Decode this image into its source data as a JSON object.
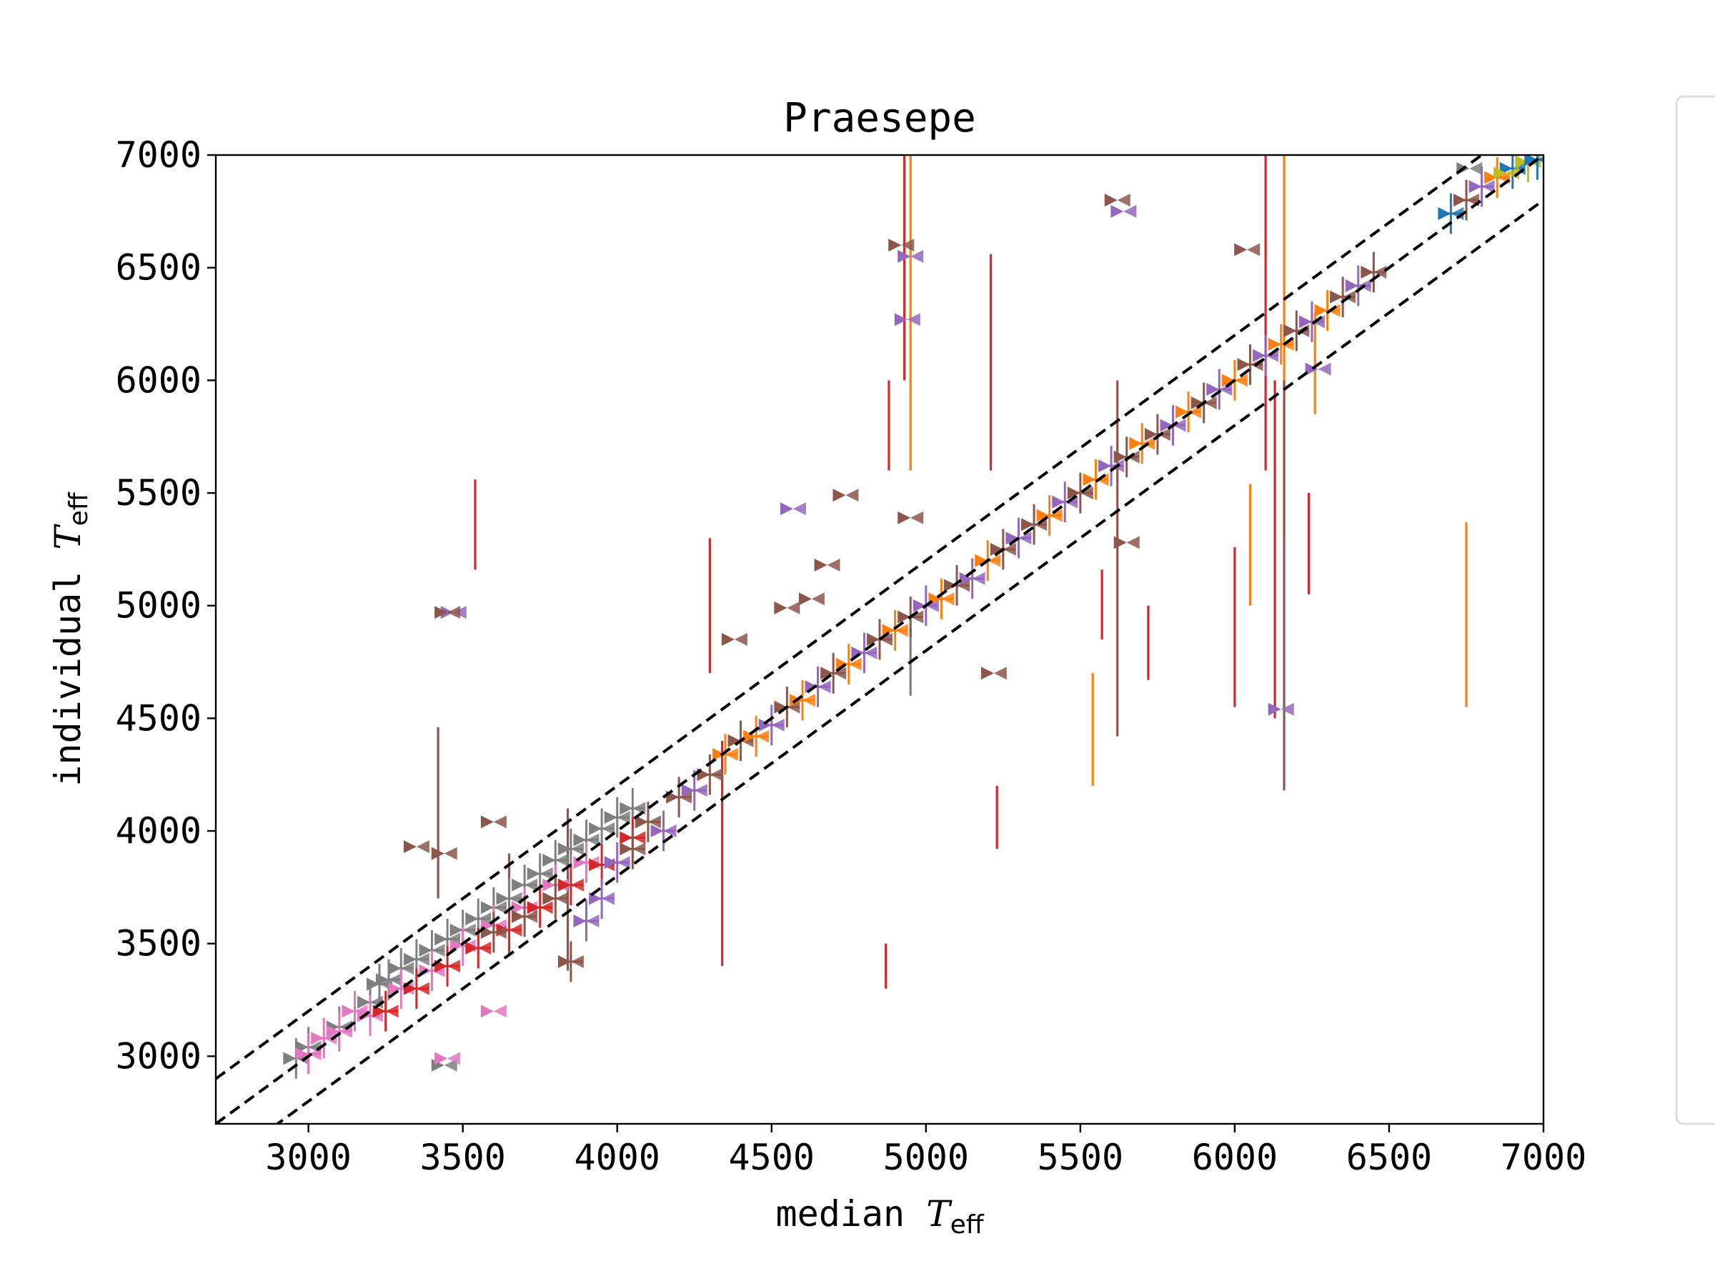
{
  "chart_data": {
    "type": "scatter",
    "title": "Praesepe",
    "xlabel": {
      "text": "median ",
      "symbol": "T",
      "sub": "eff"
    },
    "ylabel": {
      "text": "individual ",
      "symbol": "T",
      "sub": "eff"
    },
    "xlim": [
      2700,
      7000
    ],
    "ylim": [
      2700,
      7000
    ],
    "xticks": [
      3000,
      3500,
      4000,
      4500,
      5000,
      5500,
      6000,
      6500,
      7000
    ],
    "yticks": [
      3000,
      3500,
      4000,
      4500,
      5000,
      5500,
      6000,
      6500,
      7000
    ],
    "grid": false,
    "legend": "right (empty)",
    "reference_lines": [
      {
        "style": "dashed",
        "color": "#000000",
        "slope": 1,
        "offset": 200
      },
      {
        "style": "dashed",
        "color": "#000000",
        "slope": 1,
        "offset": 0
      },
      {
        "style": "dashed",
        "color": "#000000",
        "slope": 1,
        "offset": -200
      }
    ],
    "colors": [
      "#1f77b4",
      "#ff7f0e",
      "#2ca02c",
      "#d62728",
      "#9467bd",
      "#8c564b",
      "#e377c2",
      "#7f7f7f",
      "#bcbd22",
      "#17becf"
    ],
    "main_band": [
      [
        2960,
        2990,
        7
      ],
      [
        3000,
        3040,
        7
      ],
      [
        3050,
        3080,
        6
      ],
      [
        3100,
        3130,
        7
      ],
      [
        3150,
        3200,
        6
      ],
      [
        3200,
        3240,
        7
      ],
      [
        3230,
        3320,
        7
      ],
      [
        3260,
        3340,
        7
      ],
      [
        3300,
        3390,
        7
      ],
      [
        3350,
        3430,
        7
      ],
      [
        3400,
        3470,
        7
      ],
      [
        3450,
        3520,
        7
      ],
      [
        3500,
        3560,
        7
      ],
      [
        3550,
        3610,
        7
      ],
      [
        3600,
        3660,
        7
      ],
      [
        3650,
        3700,
        7
      ],
      [
        3700,
        3760,
        7
      ],
      [
        3750,
        3810,
        7
      ],
      [
        3800,
        3870,
        7
      ],
      [
        3850,
        3920,
        7
      ],
      [
        3900,
        3960,
        7
      ],
      [
        3950,
        4010,
        7
      ],
      [
        4000,
        4060,
        7
      ],
      [
        4050,
        4100,
        7
      ],
      [
        3000,
        3010,
        6
      ],
      [
        3100,
        3110,
        6
      ],
      [
        3200,
        3180,
        6
      ],
      [
        3300,
        3300,
        6
      ],
      [
        3400,
        3380,
        6
      ],
      [
        3500,
        3490,
        6
      ],
      [
        3600,
        3580,
        6
      ],
      [
        3700,
        3660,
        6
      ],
      [
        3800,
        3760,
        6
      ],
      [
        3900,
        3860,
        6
      ],
      [
        3250,
        3200,
        3
      ],
      [
        3350,
        3300,
        3
      ],
      [
        3450,
        3400,
        3
      ],
      [
        3550,
        3480,
        3
      ],
      [
        3650,
        3560,
        3
      ],
      [
        3750,
        3660,
        3
      ],
      [
        3850,
        3760,
        3
      ],
      [
        3950,
        3850,
        3
      ],
      [
        4050,
        3970,
        3
      ],
      [
        3600,
        3550,
        5
      ],
      [
        3700,
        3620,
        5
      ],
      [
        3800,
        3700,
        5
      ],
      [
        3850,
        3420,
        5
      ],
      [
        3900,
        3600,
        4
      ],
      [
        3950,
        3700,
        4
      ],
      [
        4000,
        3860,
        4
      ],
      [
        4050,
        3920,
        5
      ],
      [
        4100,
        4040,
        5
      ],
      [
        4150,
        4000,
        4
      ],
      [
        4200,
        4150,
        5
      ],
      [
        4250,
        4180,
        4
      ],
      [
        4300,
        4250,
        5
      ],
      [
        4350,
        4340,
        1
      ],
      [
        4400,
        4400,
        5
      ],
      [
        4450,
        4420,
        1
      ],
      [
        4500,
        4470,
        4
      ],
      [
        4550,
        4550,
        5
      ],
      [
        4600,
        4580,
        1
      ],
      [
        4650,
        4640,
        4
      ],
      [
        4700,
        4700,
        5
      ],
      [
        4750,
        4740,
        1
      ],
      [
        4800,
        4790,
        4
      ],
      [
        4850,
        4850,
        5
      ],
      [
        4900,
        4890,
        1
      ],
      [
        4950,
        4950,
        5
      ],
      [
        5000,
        5000,
        4
      ],
      [
        5050,
        5030,
        1
      ],
      [
        5100,
        5090,
        5
      ],
      [
        5150,
        5120,
        4
      ],
      [
        5200,
        5200,
        1
      ],
      [
        5250,
        5250,
        5
      ],
      [
        5300,
        5300,
        4
      ],
      [
        5350,
        5360,
        5
      ],
      [
        5400,
        5400,
        1
      ],
      [
        5450,
        5460,
        4
      ],
      [
        5500,
        5500,
        5
      ],
      [
        5550,
        5560,
        1
      ],
      [
        5600,
        5620,
        4
      ],
      [
        5650,
        5660,
        5
      ],
      [
        5700,
        5720,
        1
      ],
      [
        5750,
        5760,
        5
      ],
      [
        5800,
        5800,
        4
      ],
      [
        5850,
        5860,
        1
      ],
      [
        5900,
        5900,
        5
      ],
      [
        5950,
        5960,
        4
      ],
      [
        6000,
        6000,
        1
      ],
      [
        6050,
        6070,
        5
      ],
      [
        6100,
        6110,
        4
      ],
      [
        6150,
        6160,
        1
      ],
      [
        6200,
        6220,
        5
      ],
      [
        6250,
        6260,
        4
      ],
      [
        6300,
        6310,
        1
      ],
      [
        6350,
        6370,
        5
      ],
      [
        6400,
        6420,
        4
      ],
      [
        6450,
        6480,
        5
      ],
      [
        6700,
        6740,
        0
      ],
      [
        6750,
        6800,
        5
      ],
      [
        6800,
        6860,
        4
      ],
      [
        6850,
        6900,
        1
      ],
      [
        6900,
        6940,
        0
      ],
      [
        6950,
        6970,
        8
      ],
      [
        6980,
        6980,
        0
      ]
    ],
    "outliers": [
      [
        3470,
        4970,
        4
      ],
      [
        3450,
        4970,
        5
      ],
      [
        3350,
        3930,
        5
      ],
      [
        3440,
        3900,
        5
      ],
      [
        3600,
        4040,
        5
      ],
      [
        3440,
        2960,
        7
      ],
      [
        3450,
        2990,
        6
      ],
      [
        3600,
        3200,
        6
      ],
      [
        4570,
        5430,
        4
      ],
      [
        4740,
        5490,
        5
      ],
      [
        4680,
        5180,
        5
      ],
      [
        4550,
        4990,
        5
      ],
      [
        4630,
        5030,
        5
      ],
      [
        4380,
        4850,
        5
      ],
      [
        4920,
        6600,
        5
      ],
      [
        4940,
        6270,
        4
      ],
      [
        4950,
        6550,
        4
      ],
      [
        4950,
        5390,
        5
      ],
      [
        5220,
        4700,
        5
      ],
      [
        5620,
        6800,
        5
      ],
      [
        5640,
        6750,
        4
      ],
      [
        5650,
        5280,
        5
      ],
      [
        6040,
        6580,
        5
      ],
      [
        6150,
        4540,
        4
      ],
      [
        6270,
        6050,
        4
      ],
      [
        6880,
        6920,
        8
      ],
      [
        6760,
        6940,
        7
      ]
    ],
    "error_bars": [
      [
        3540,
        5160,
        5560,
        3
      ],
      [
        4300,
        4700,
        5300,
        3
      ],
      [
        4340,
        3400,
        4400,
        3
      ],
      [
        4880,
        5600,
        6000,
        3
      ],
      [
        4930,
        6000,
        7000,
        3
      ],
      [
        4950,
        5600,
        7000,
        1
      ],
      [
        5210,
        5600,
        6560,
        3
      ],
      [
        5230,
        3920,
        4200,
        3
      ],
      [
        5540,
        4200,
        4700,
        1
      ],
      [
        5570,
        4450,
        4450,
        1
      ],
      [
        6000,
        4550,
        5260,
        3
      ],
      [
        6050,
        5000,
        5540,
        1
      ],
      [
        6100,
        5600,
        7000,
        3
      ],
      [
        6130,
        4500,
        6000,
        3
      ],
      [
        6160,
        5300,
        7000,
        1
      ],
      [
        6240,
        5050,
        5500,
        3
      ],
      [
        6260,
        5850,
        6300,
        1
      ],
      [
        6750,
        4550,
        5370,
        1
      ],
      [
        4870,
        3300,
        3500,
        3
      ],
      [
        5620,
        4420,
        6000,
        5
      ],
      [
        6160,
        4180,
        6000,
        5
      ],
      [
        5720,
        4670,
        5000,
        3
      ],
      [
        5570,
        4850,
        5160,
        3
      ],
      [
        3420,
        3700,
        4460,
        5
      ],
      [
        3650,
        3450,
        3900,
        5
      ],
      [
        3840,
        3380,
        4100,
        5
      ],
      [
        4950,
        4600,
        4900,
        7
      ]
    ]
  }
}
